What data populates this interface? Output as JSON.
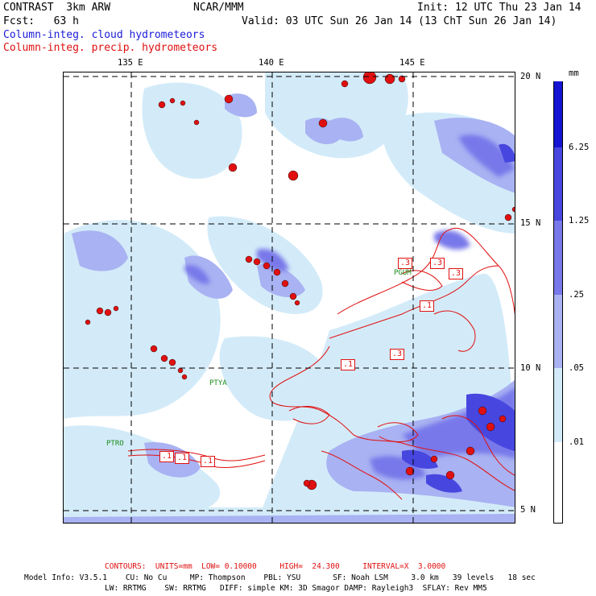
{
  "header": {
    "line1_left": "CONTRAST  3km ARW",
    "line1_mid": "NCAR/MMM",
    "line1_right": "Init: 12 UTC Thu 23 Jan 14",
    "line2_left": "Fcst:   63 h",
    "line2_right": "Valid: 03 UTC Sun 26 Jan 14 (13 ChT Sun 26 Jan 14)",
    "legend_cloud": "Column-integ. cloud hydrometeors",
    "legend_precip": "Column-integ. precip. hydrometeors"
  },
  "axes": {
    "lon_labels": [
      "135 E",
      "140 E",
      "145 E"
    ],
    "lat_labels": [
      "20 N",
      "15 N",
      "10 N",
      "5 N"
    ]
  },
  "stations": [
    "PGUM",
    "PTYA",
    "PTRO"
  ],
  "contour_labels": [
    ".1",
    ".1",
    ".1",
    ".1",
    ".3",
    ".3",
    ".3",
    ".1",
    ".3"
  ],
  "colorbar": {
    "unit": "mm",
    "ticks": [
      "6.25",
      "1.25",
      ".25",
      ".05",
      ".01"
    ],
    "colors": [
      "#1414d2",
      "#4747e0",
      "#7878ea",
      "#a9b2f2",
      "#d3ebf9",
      "#ffffff"
    ]
  },
  "footer": {
    "contours": "CONTOURS:  UNITS=mm  LOW= 0.10000     HIGH=  24.300     INTERVAL=X  3.0000",
    "model_line1": "Model Info: V3.5.1    CU: No Cu     MP: Thompson    PBL: YSU       SF: Noah LSM     3.0 km   39 levels   18 sec",
    "model_line2": "LW: RRTMG    SW: RRTMG   DIFF: simple KM: 3D Smagor DAMP: Rayleigh3  SFLAY: Rev MM5"
  },
  "colors": {
    "precip": "#e01010",
    "cloud_text": "#1a1ad8",
    "grid": "#000000",
    "station": "#1a8a1a"
  }
}
